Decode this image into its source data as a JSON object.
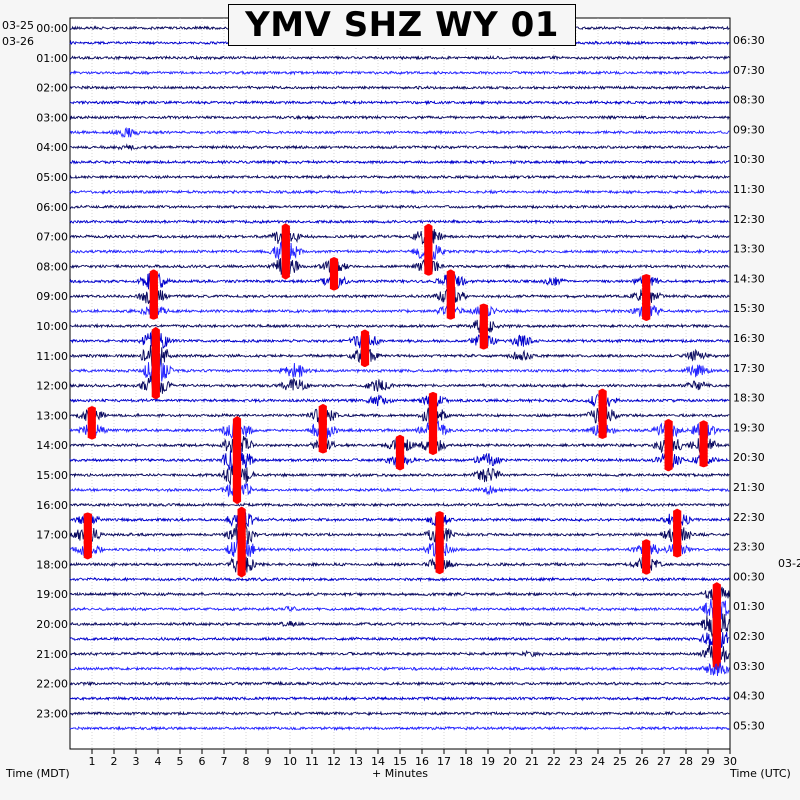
{
  "title": "YMV SHZ WY 01",
  "chart_data": {
    "type": "seismogram",
    "title": "YMV SHZ WY 01",
    "left_dates": [
      "03-25",
      "03-26"
    ],
    "right_dates": [
      "03-2"
    ],
    "xlabel": "+ Minutes",
    "left_axis_label": "Time (MDT)",
    "right_axis_label": "Time (UTC)",
    "x_ticks": [
      1,
      2,
      3,
      4,
      5,
      6,
      7,
      8,
      9,
      10,
      11,
      12,
      13,
      14,
      15,
      16,
      17,
      18,
      19,
      20,
      21,
      22,
      23,
      24,
      25,
      26,
      27,
      28,
      29,
      30
    ],
    "xlim": [
      0,
      30
    ],
    "left_hour_labels": [
      "00:00",
      "01:00",
      "02:00",
      "03:00",
      "04:00",
      "05:00",
      "06:00",
      "07:00",
      "08:00",
      "09:00",
      "10:00",
      "11:00",
      "12:00",
      "13:00",
      "14:00",
      "15:00",
      "16:00",
      "17:00",
      "18:00",
      "19:00",
      "20:00",
      "21:00",
      "22:00",
      "23:00"
    ],
    "right_hour_labels": [
      "06:30",
      "07:30",
      "08:30",
      "09:30",
      "10:30",
      "11:30",
      "12:30",
      "13:30",
      "14:30",
      "15:30",
      "16:30",
      "17:30",
      "18:30",
      "19:30",
      "20:30",
      "21:30",
      "22:30",
      "23:30",
      "00:30",
      "01:30",
      "02:30",
      "03:30",
      "04:30",
      "05:30"
    ],
    "trace_colors": [
      "#0a0a60",
      "#0000cc",
      "#0a0a60",
      "#2323ff"
    ],
    "clip_color": "#ff0000",
    "trace_count": 48,
    "minutes_per_trace": 30,
    "events": [
      {
        "minute": 2.6,
        "hour": 3.5,
        "amp": 1.2,
        "dur": 0.6
      },
      {
        "minute": 22,
        "hour": 1.0,
        "amp": 0.4,
        "dur": 0.2
      },
      {
        "minute": 3.8,
        "hour": 8.5,
        "amp": 2.4,
        "dur": 1.2,
        "clip": true
      },
      {
        "minute": 3.9,
        "hour": 10.5,
        "amp": 3.2,
        "dur": 2.0,
        "clip": true
      },
      {
        "minute": 7.6,
        "hour": 13.5,
        "amp": 3.5,
        "dur": 2.5,
        "clip": true
      },
      {
        "minute": 7.8,
        "hour": 16.5,
        "amp": 3.0,
        "dur": 2.0,
        "clip": true
      },
      {
        "minute": 9.8,
        "hour": 7.0,
        "amp": 2.8,
        "dur": 1.5,
        "clip": true
      },
      {
        "minute": 10.2,
        "hour": 11.5,
        "amp": 2.0,
        "dur": 1.0
      },
      {
        "minute": 12.0,
        "hour": 8.0,
        "amp": 1.8,
        "dur": 1.0,
        "clip": true
      },
      {
        "minute": 13.4,
        "hour": 10.5,
        "amp": 2.2,
        "dur": 1.0,
        "clip": true
      },
      {
        "minute": 16.3,
        "hour": 7.0,
        "amp": 2.6,
        "dur": 1.2,
        "clip": true
      },
      {
        "minute": 16.5,
        "hour": 12.8,
        "amp": 2.5,
        "dur": 1.5,
        "clip": true
      },
      {
        "minute": 17.3,
        "hour": 8.5,
        "amp": 2.4,
        "dur": 1.2,
        "clip": true
      },
      {
        "minute": 18.8,
        "hour": 9.8,
        "amp": 2.0,
        "dur": 1.0,
        "clip": true
      },
      {
        "minute": 16.8,
        "hour": 16.8,
        "amp": 2.5,
        "dur": 1.5,
        "clip": true
      },
      {
        "minute": 15.0,
        "hour": 14.0,
        "amp": 2.0,
        "dur": 1.0,
        "clip": true
      },
      {
        "minute": 11.5,
        "hour": 13.0,
        "amp": 2.3,
        "dur": 1.2,
        "clip": true
      },
      {
        "minute": 20.5,
        "hour": 10.5,
        "amp": 1.4,
        "dur": 0.8
      },
      {
        "minute": 24.2,
        "hour": 12.5,
        "amp": 2.4,
        "dur": 1.2,
        "clip": true
      },
      {
        "minute": 26.2,
        "hour": 8.8,
        "amp": 2.0,
        "dur": 1.2,
        "clip": true
      },
      {
        "minute": 27.2,
        "hour": 13.5,
        "amp": 2.4,
        "dur": 1.5,
        "clip": true
      },
      {
        "minute": 28.5,
        "hour": 11.2,
        "amp": 1.6,
        "dur": 1.0
      },
      {
        "minute": 28.8,
        "hour": 13.5,
        "amp": 2.0,
        "dur": 1.2,
        "clip": true
      },
      {
        "minute": 26.2,
        "hour": 17.5,
        "amp": 2.0,
        "dur": 1.0,
        "clip": true
      },
      {
        "minute": 27.6,
        "hour": 16.5,
        "amp": 2.2,
        "dur": 1.2,
        "clip": true
      },
      {
        "minute": 29.4,
        "hour": 19.2,
        "amp": 3.5,
        "dur": 2.5,
        "clip": true
      },
      {
        "minute": 0.8,
        "hour": 16.8,
        "amp": 2.0,
        "dur": 1.2,
        "clip": true
      },
      {
        "minute": 1.0,
        "hour": 13.0,
        "amp": 1.8,
        "dur": 1.0,
        "clip": true
      },
      {
        "minute": 21.0,
        "hour": 21.0,
        "amp": 0.8,
        "dur": 0.4
      },
      {
        "minute": 10.0,
        "hour": 19.8,
        "amp": 0.8,
        "dur": 0.4
      },
      {
        "minute": 14.0,
        "hour": 12.0,
        "amp": 1.5,
        "dur": 0.8
      },
      {
        "minute": 19.0,
        "hour": 14.6,
        "amp": 1.8,
        "dur": 1.0
      },
      {
        "minute": 22.0,
        "hour": 8.5,
        "amp": 1.0,
        "dur": 0.5
      }
    ]
  }
}
